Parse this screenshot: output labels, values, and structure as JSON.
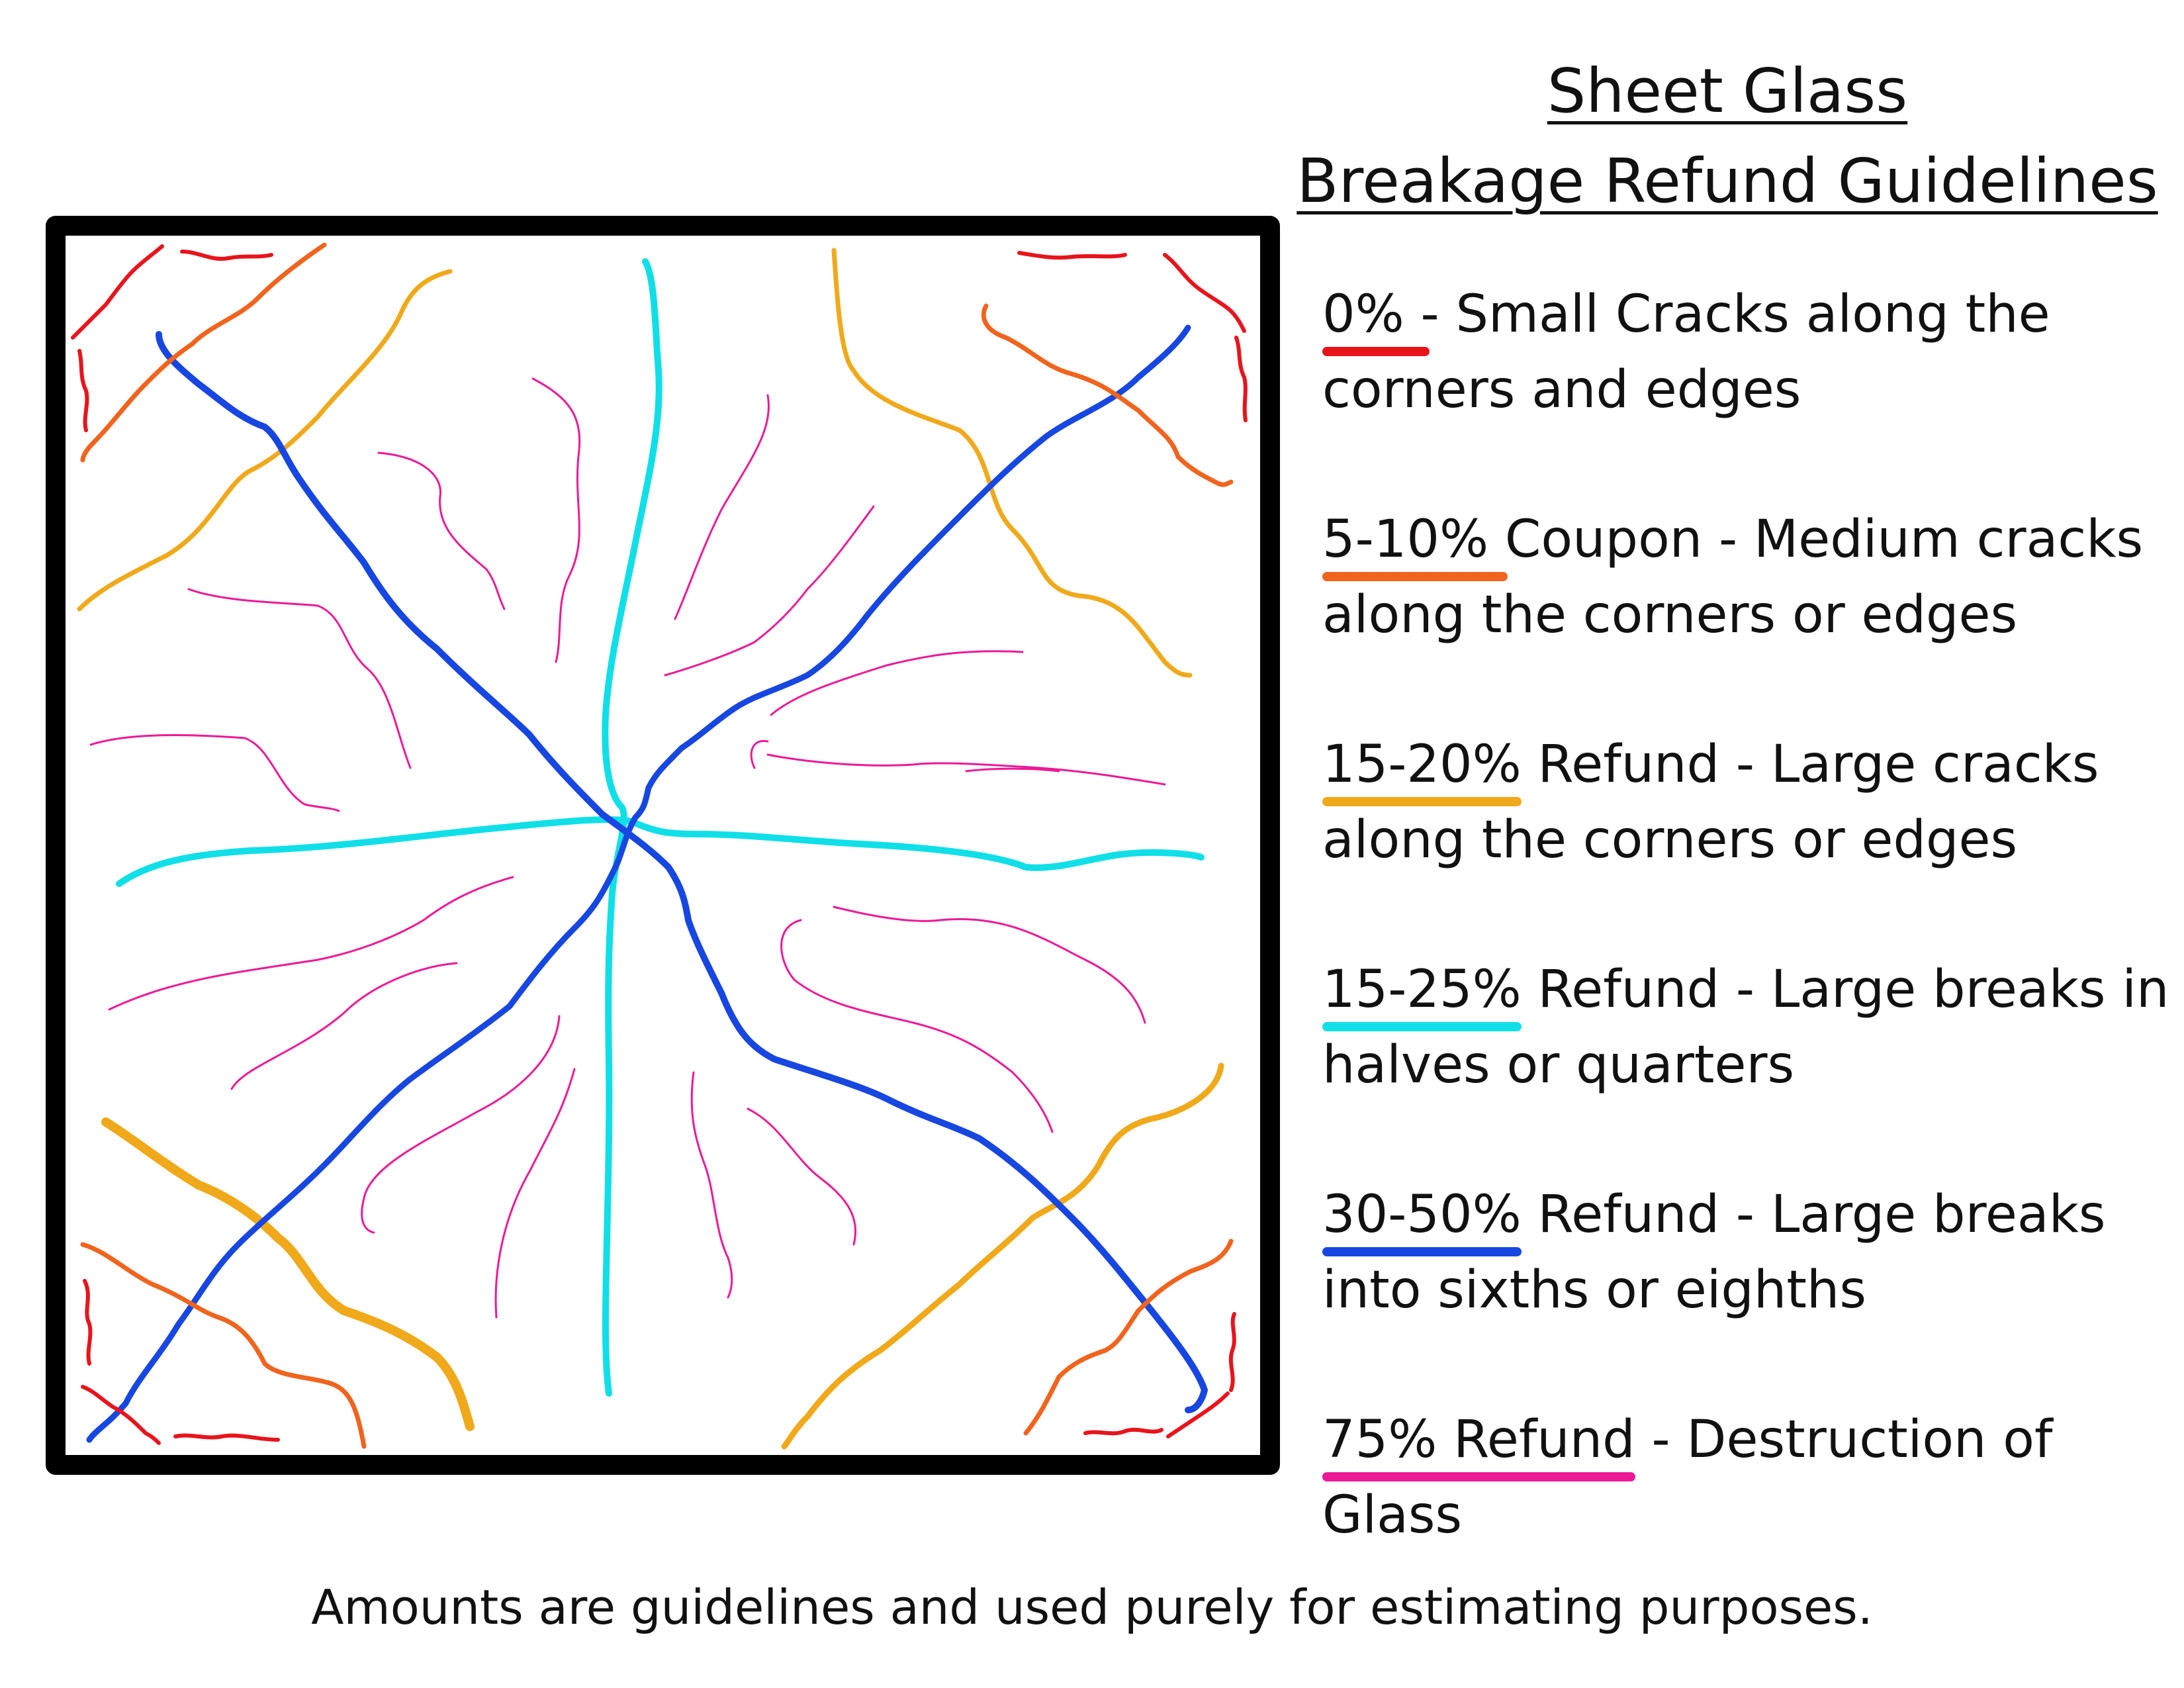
{
  "title": {
    "line1": "Sheet Glass",
    "line2": "Breakage Refund Guidelines"
  },
  "legend": [
    {
      "highlight": "0% -",
      "text": " Small Cracks along the corners and edges",
      "color": "#e8141c"
    },
    {
      "highlight": "5-10% Coupon -",
      "text": "  Medium cracks along the corners or edges",
      "color": "#f0641e"
    },
    {
      "highlight": "15-20%",
      "text": " Refund - Large cracks along the corners or edges",
      "color": "#f0a91a"
    },
    {
      "highlight": "15-25%",
      "text": " Refund - Large breaks in halves or quarters",
      "color": "#10dfe8"
    },
    {
      "highlight": "30-50%",
      "text": " Refund - Large breaks into sixths or eighths",
      "color": "#1747e0"
    },
    {
      "highlight": "75% Refund",
      "text": " - Destruction of Glass",
      "color": "#ec1a96"
    }
  ],
  "footer": "Amounts are guidelines and used purely for estimating purposes.",
  "colors": {
    "frame": "#000000",
    "small_cracks": "#e8141c",
    "medium_cracks": "#f0641e",
    "large_cracks": "#f0a91a",
    "halves_quarters": "#10dfe8",
    "sixths_eighths": "#1747e0",
    "destruction": "#ec1a96"
  }
}
